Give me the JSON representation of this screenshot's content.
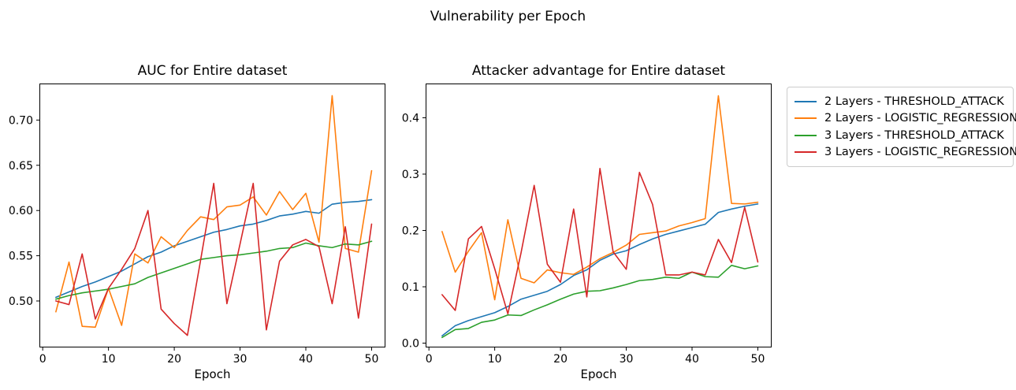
{
  "figure": {
    "suptitle": "Vulnerability per Epoch"
  },
  "legend": {
    "entries": [
      {
        "label": "2 Layers - THRESHOLD_ATTACK",
        "color": "#1f77b4"
      },
      {
        "label": "2 Layers - LOGISTIC_REGRESSION",
        "color": "#ff7f0e"
      },
      {
        "label": "3 Layers - THRESHOLD_ATTACK",
        "color": "#2ca02c"
      },
      {
        "label": "3 Layers - LOGISTIC_REGRESSION",
        "color": "#d62728"
      }
    ]
  },
  "chart_data": [
    {
      "type": "line",
      "title": "AUC for Entire dataset",
      "xlabel": "Epoch",
      "xlim": [
        -0.5,
        52.1
      ],
      "ylim": [
        0.4486,
        0.7404
      ],
      "grid": false,
      "xticks": {
        "values": [
          0,
          10,
          20,
          30,
          40,
          50
        ],
        "labels": [
          "0",
          "10",
          "20",
          "30",
          "40",
          "50"
        ]
      },
      "yticks": {
        "values": [
          0.5,
          0.55,
          0.6,
          0.65,
          0.7
        ],
        "labels": [
          "0.50",
          "0.55",
          "0.60",
          "0.65",
          "0.70"
        ]
      },
      "x": [
        2,
        4,
        6,
        8,
        10,
        12,
        14,
        16,
        18,
        20,
        22,
        24,
        26,
        28,
        30,
        32,
        34,
        36,
        38,
        40,
        42,
        44,
        46,
        48,
        50
      ],
      "series": [
        {
          "name": "2 Layers - THRESHOLD_ATTACK",
          "color": "#1f77b4",
          "values": [
            0.504,
            0.51,
            0.516,
            0.521,
            0.527,
            0.533,
            0.541,
            0.549,
            0.554,
            0.561,
            0.566,
            0.571,
            0.576,
            0.579,
            0.583,
            0.585,
            0.589,
            0.594,
            0.596,
            0.599,
            0.597,
            0.607,
            0.609,
            0.61,
            0.612
          ]
        },
        {
          "name": "2 Layers - LOGISTIC_REGRESSION",
          "color": "#ff7f0e",
          "values": [
            0.488,
            0.543,
            0.472,
            0.471,
            0.514,
            0.473,
            0.552,
            0.542,
            0.571,
            0.559,
            0.578,
            0.593,
            0.59,
            0.604,
            0.606,
            0.615,
            0.595,
            0.621,
            0.601,
            0.619,
            0.565,
            0.727,
            0.558,
            0.554,
            0.644
          ]
        },
        {
          "name": "3 Layers - THRESHOLD_ATTACK",
          "color": "#2ca02c",
          "values": [
            0.502,
            0.506,
            0.509,
            0.511,
            0.513,
            0.516,
            0.519,
            0.526,
            0.531,
            0.536,
            0.541,
            0.546,
            0.548,
            0.55,
            0.551,
            0.553,
            0.555,
            0.558,
            0.559,
            0.564,
            0.561,
            0.559,
            0.563,
            0.562,
            0.566
          ]
        },
        {
          "name": "3 Layers - LOGISTIC_REGRESSION",
          "color": "#d62728",
          "values": [
            0.5,
            0.496,
            0.552,
            0.48,
            0.514,
            0.535,
            0.558,
            0.6,
            0.491,
            0.475,
            0.462,
            0.545,
            0.63,
            0.497,
            0.563,
            0.63,
            0.468,
            0.544,
            0.562,
            0.568,
            0.56,
            0.497,
            0.582,
            0.481,
            0.585
          ]
        }
      ]
    },
    {
      "type": "line",
      "title": "Attacker advantage for Entire dataset",
      "xlabel": "Epoch",
      "xlim": [
        -0.5,
        52.1
      ],
      "ylim": [
        -0.0077,
        0.4608
      ],
      "grid": false,
      "xticks": {
        "values": [
          0,
          10,
          20,
          30,
          40,
          50
        ],
        "labels": [
          "0",
          "10",
          "20",
          "30",
          "40",
          "50"
        ]
      },
      "yticks": {
        "values": [
          0.0,
          0.1,
          0.2,
          0.3,
          0.4
        ],
        "labels": [
          "0.0",
          "0.1",
          "0.2",
          "0.3",
          "0.4"
        ]
      },
      "x": [
        2,
        4,
        6,
        8,
        10,
        12,
        14,
        16,
        18,
        20,
        22,
        24,
        26,
        28,
        30,
        32,
        34,
        36,
        38,
        40,
        42,
        44,
        46,
        48,
        50
      ],
      "series": [
        {
          "name": "2 Layers - THRESHOLD_ATTACK",
          "color": "#1f77b4",
          "values": [
            0.013,
            0.031,
            0.04,
            0.047,
            0.054,
            0.065,
            0.078,
            0.085,
            0.092,
            0.104,
            0.12,
            0.13,
            0.147,
            0.158,
            0.164,
            0.175,
            0.185,
            0.193,
            0.199,
            0.205,
            0.211,
            0.232,
            0.238,
            0.243,
            0.247
          ]
        },
        {
          "name": "2 Layers - LOGISTIC_REGRESSION",
          "color": "#ff7f0e",
          "values": [
            0.198,
            0.126,
            0.163,
            0.196,
            0.077,
            0.219,
            0.115,
            0.107,
            0.13,
            0.125,
            0.122,
            0.135,
            0.15,
            0.161,
            0.174,
            0.193,
            0.196,
            0.199,
            0.208,
            0.214,
            0.221,
            0.439,
            0.248,
            0.247,
            0.25
          ]
        },
        {
          "name": "3 Layers - THRESHOLD_ATTACK",
          "color": "#2ca02c",
          "values": [
            0.01,
            0.024,
            0.026,
            0.037,
            0.041,
            0.05,
            0.049,
            0.059,
            0.068,
            0.078,
            0.087,
            0.092,
            0.093,
            0.098,
            0.104,
            0.111,
            0.113,
            0.117,
            0.115,
            0.126,
            0.118,
            0.117,
            0.138,
            0.132,
            0.137
          ]
        },
        {
          "name": "3 Layers - LOGISTIC_REGRESSION",
          "color": "#d62728",
          "values": [
            0.086,
            0.058,
            0.185,
            0.207,
            0.132,
            0.052,
            0.16,
            0.28,
            0.14,
            0.108,
            0.238,
            0.082,
            0.31,
            0.162,
            0.131,
            0.303,
            0.246,
            0.121,
            0.121,
            0.126,
            0.121,
            0.184,
            0.143,
            0.241,
            0.144
          ]
        }
      ]
    }
  ]
}
